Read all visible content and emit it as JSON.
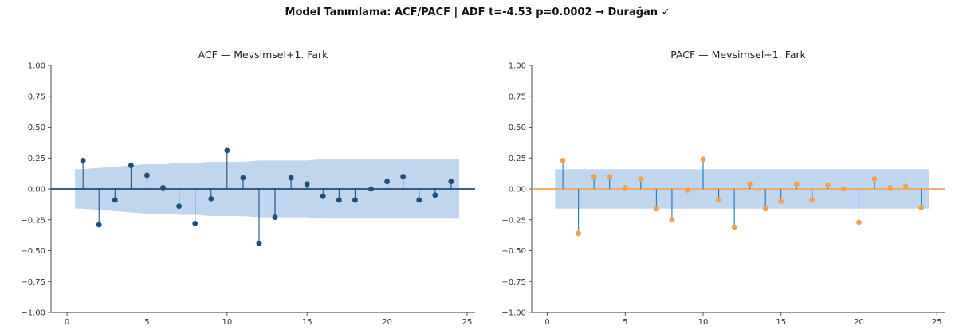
{
  "suptitle": "Model Tanımlama: ACF/PACF | ADF t=-4.53 p=0.0002 → Durağan ✓",
  "chart_data": [
    {
      "type": "stem",
      "title": "ACF — Mevsimsel+1. Fark",
      "xlabel": "",
      "ylabel": "",
      "xlim": [
        -1,
        25.5
      ],
      "ylim": [
        -1.0,
        1.0
      ],
      "xticks": [
        0,
        5,
        10,
        15,
        20,
        25
      ],
      "yticks": [
        1.0,
        0.75,
        0.5,
        0.25,
        0.0,
        -0.25,
        -0.5,
        -0.75,
        -1.0
      ],
      "ytick_labels": [
        "1.00",
        "0.75",
        "0.50",
        "0.25",
        "0.00",
        "−0.25",
        "−0.50",
        "−0.75",
        "−1.00"
      ],
      "stem_color": "#1f4e79",
      "baseline_color": "#1f4e79",
      "band_color": "#a9c8e8",
      "confidence_band": {
        "x": [
          0.5,
          1,
          2,
          3,
          4,
          5,
          6,
          7,
          8,
          9,
          10,
          11,
          12,
          13,
          14,
          15,
          16,
          17,
          18,
          19,
          20,
          21,
          22,
          23,
          24,
          24.5
        ],
        "upper": [
          0.16,
          0.16,
          0.17,
          0.18,
          0.19,
          0.2,
          0.2,
          0.21,
          0.21,
          0.22,
          0.22,
          0.22,
          0.23,
          0.23,
          0.23,
          0.23,
          0.24,
          0.24,
          0.24,
          0.24,
          0.24,
          0.24,
          0.24,
          0.24,
          0.24,
          0.24
        ]
      },
      "lags": [
        1,
        2,
        3,
        4,
        5,
        6,
        7,
        8,
        9,
        10,
        11,
        12,
        13,
        14,
        15,
        16,
        17,
        18,
        19,
        20,
        21,
        22,
        23,
        24
      ],
      "values": [
        0.23,
        -0.29,
        -0.09,
        0.19,
        0.11,
        0.01,
        -0.14,
        -0.28,
        -0.08,
        0.31,
        0.09,
        -0.44,
        -0.23,
        0.09,
        0.04,
        -0.06,
        -0.09,
        -0.09,
        0.0,
        0.06,
        0.1,
        -0.09,
        -0.05,
        0.06
      ]
    },
    {
      "type": "stem",
      "title": "PACF — Mevsimsel+1. Fark",
      "xlabel": "",
      "ylabel": "",
      "xlim": [
        -1,
        25.5
      ],
      "ylim": [
        -1.0,
        1.0
      ],
      "xticks": [
        0,
        5,
        10,
        15,
        20,
        25
      ],
      "yticks": [
        1.0,
        0.75,
        0.5,
        0.25,
        0.0,
        -0.25,
        -0.5,
        -0.75,
        -1.0
      ],
      "ytick_labels": [
        "1.00",
        "0.75",
        "0.50",
        "0.25",
        "0.00",
        "−0.25",
        "−0.50",
        "−0.75",
        "−1.00"
      ],
      "stem_color": "#1f77b4",
      "marker_color": "#f0a050",
      "baseline_color": "#f5a15a",
      "band_color": "#a9c8e8",
      "confidence_band": {
        "x": [
          0.5,
          24.5
        ],
        "upper": [
          0.16,
          0.16
        ]
      },
      "lags": [
        1,
        2,
        3,
        4,
        5,
        6,
        7,
        8,
        9,
        10,
        11,
        12,
        13,
        14,
        15,
        16,
        17,
        18,
        19,
        20,
        21,
        22,
        23,
        24
      ],
      "values": [
        0.23,
        -0.36,
        0.1,
        0.1,
        0.01,
        0.08,
        -0.16,
        -0.25,
        -0.01,
        0.24,
        -0.09,
        -0.31,
        0.04,
        -0.16,
        -0.1,
        0.04,
        -0.09,
        0.03,
        0.0,
        -0.27,
        0.08,
        0.01,
        0.02,
        -0.15
      ]
    }
  ]
}
